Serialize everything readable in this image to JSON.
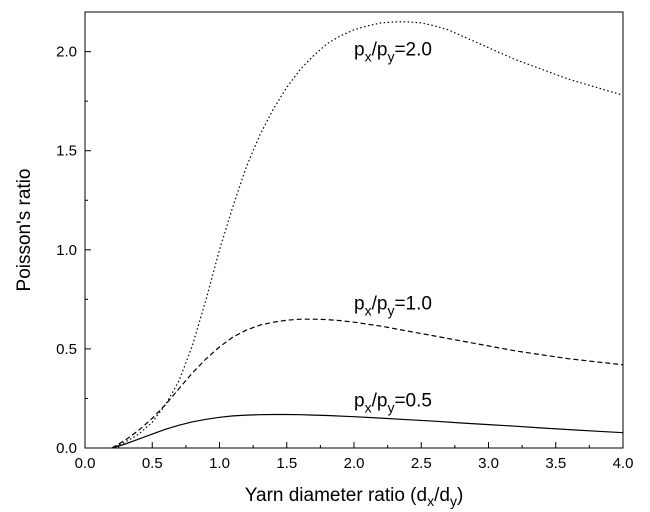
{
  "chart_data": {
    "type": "line",
    "title": "",
    "xlabel": {
      "main": "Yarn diameter ratio (d",
      "sub1": "x",
      "mid": "/d",
      "sub2": "y",
      "end": ")"
    },
    "ylabel": "Poisson's ratio",
    "xlim": [
      0.0,
      4.0
    ],
    "ylim": [
      0.0,
      2.2
    ],
    "xticks": [
      "0.0",
      "0.5",
      "1.0",
      "1.5",
      "2.0",
      "2.5",
      "3.0",
      "3.5",
      "4.0"
    ],
    "yticks": [
      "0.0",
      "0.5",
      "1.0",
      "1.5",
      "2.0"
    ],
    "grid": false,
    "series": [
      {
        "label": {
          "p": "p",
          "sub1": "x",
          "slash": "/p",
          "sub2": "y",
          "value": "=2.0"
        },
        "style": "dotted",
        "x": [
          0.2,
          0.3,
          0.4,
          0.5,
          0.6,
          0.7,
          0.8,
          0.9,
          1.0,
          1.1,
          1.2,
          1.3,
          1.4,
          1.5,
          1.6,
          1.7,
          1.8,
          1.9,
          2.0,
          2.1,
          2.2,
          2.3,
          2.4,
          2.5,
          2.6,
          2.7,
          2.8,
          2.9,
          3.0,
          3.2,
          3.4,
          3.6,
          3.8,
          4.0
        ],
        "y": [
          0.0,
          0.03,
          0.07,
          0.13,
          0.22,
          0.34,
          0.52,
          0.75,
          1.0,
          1.22,
          1.42,
          1.58,
          1.71,
          1.82,
          1.91,
          1.98,
          2.04,
          2.08,
          2.11,
          2.13,
          2.145,
          2.15,
          2.15,
          2.145,
          2.13,
          2.11,
          2.08,
          2.05,
          2.02,
          1.96,
          1.91,
          1.86,
          1.82,
          1.78
        ]
      },
      {
        "label": {
          "p": "p",
          "sub1": "x",
          "slash": "/p",
          "sub2": "y",
          "value": "=1.0"
        },
        "style": "dashed",
        "x": [
          0.2,
          0.3,
          0.4,
          0.5,
          0.6,
          0.7,
          0.8,
          0.9,
          1.0,
          1.1,
          1.2,
          1.3,
          1.4,
          1.5,
          1.6,
          1.7,
          1.8,
          1.9,
          2.0,
          2.2,
          2.4,
          2.6,
          2.8,
          3.0,
          3.2,
          3.4,
          3.6,
          3.8,
          4.0
        ],
        "y": [
          0.0,
          0.04,
          0.09,
          0.15,
          0.22,
          0.3,
          0.38,
          0.45,
          0.51,
          0.56,
          0.595,
          0.62,
          0.635,
          0.645,
          0.65,
          0.65,
          0.648,
          0.643,
          0.635,
          0.615,
          0.59,
          0.565,
          0.54,
          0.515,
          0.49,
          0.47,
          0.45,
          0.435,
          0.42
        ]
      },
      {
        "label": {
          "p": "p",
          "sub1": "x",
          "slash": "/p",
          "sub2": "y",
          "value": "=0.5"
        },
        "style": "solid",
        "x": [
          0.2,
          0.3,
          0.4,
          0.5,
          0.6,
          0.7,
          0.8,
          0.9,
          1.0,
          1.1,
          1.2,
          1.3,
          1.4,
          1.5,
          1.6,
          1.7,
          1.8,
          2.0,
          2.2,
          2.4,
          2.6,
          2.8,
          3.0,
          3.2,
          3.4,
          3.6,
          3.8,
          4.0
        ],
        "y": [
          0.0,
          0.02,
          0.045,
          0.07,
          0.095,
          0.115,
          0.132,
          0.145,
          0.155,
          0.162,
          0.166,
          0.168,
          0.169,
          0.169,
          0.168,
          0.166,
          0.164,
          0.158,
          0.151,
          0.143,
          0.135,
          0.126,
          0.118,
          0.11,
          0.101,
          0.093,
          0.085,
          0.077
        ]
      }
    ]
  }
}
